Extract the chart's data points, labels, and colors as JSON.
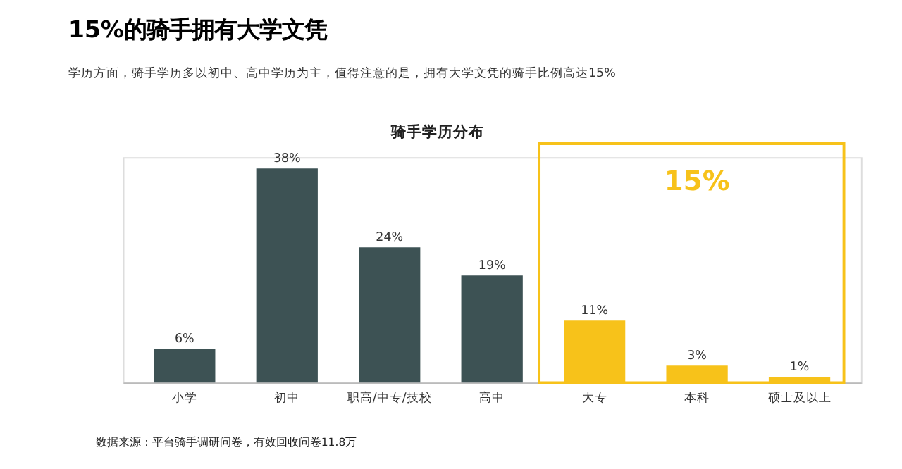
{
  "chart_data": {
    "type": "bar",
    "title": "15%的骑手拥有大学文凭",
    "subtitle": "学历方面，骑手学历多以初中、高中学历为主，值得注意的是，拥有大学文凭的骑手比例高达15%",
    "categories": [
      "小学",
      "初中",
      "职高/中专/技校",
      "高中",
      "大专",
      "本科",
      "硕士及以上"
    ],
    "values": [
      6,
      38,
      24,
      19,
      11,
      3,
      1
    ],
    "colors": [
      "#3d5254",
      "#3d5254",
      "#3d5254",
      "#3d5254",
      "#f7c21a",
      "#f7c21a",
      "#f7c21a"
    ],
    "value_labels": [
      "6%",
      "38%",
      "24%",
      "19%",
      "11%",
      "3%",
      "1%"
    ],
    "annotations": [
      "骑手学历分布",
      "数据来源：平台骑手调研问卷，有效回收问卷11.8万",
      "15%"
    ],
    "grid": false
  }
}
